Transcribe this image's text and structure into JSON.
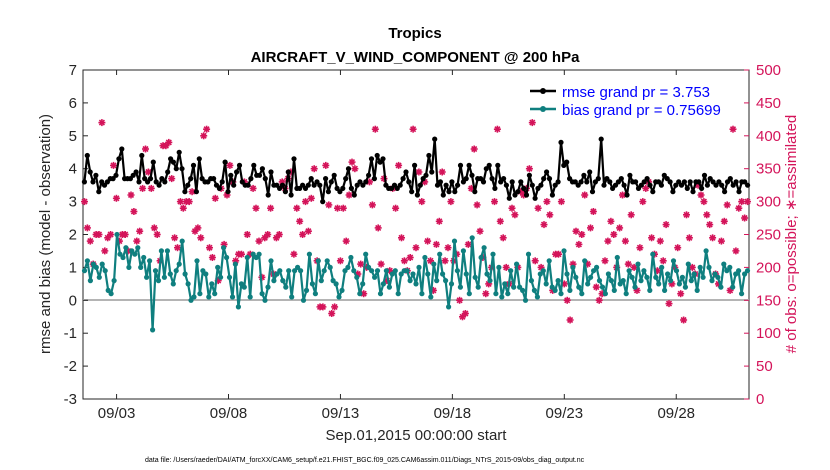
{
  "chart_data": {
    "type": "line",
    "title": "Tropics",
    "subtitle": "AIRCRAFT_V_WIND_COMPONENT @ 200 hPa",
    "xlabel": "Sep.01,2015 00:00:00 start",
    "ylabel_left": "rmse and bias (model - observation)",
    "ylabel_right": "# of obs: o=possible; ∗=assimilated",
    "footnote": "data file: /Users/raeder/DAI/ATM_forcXX/CAM6_setup/f.e21.FHIST_BGC.f09_025.CAM6assim.011/Diags_NTrS_2015-09/obs_diag_output.nc",
    "x_unit": "days since Sep.01,2015 00:00",
    "xlim": [
      0.5,
      30.25
    ],
    "ylim_left": [
      -3,
      7
    ],
    "ylim_right": [
      0,
      500
    ],
    "left_ticks": [
      "-3",
      "-2",
      "-1",
      "0",
      "1",
      "2",
      "3",
      "4",
      "5",
      "6",
      "7"
    ],
    "right_ticks": [
      "0",
      "50",
      "100",
      "150",
      "200",
      "250",
      "300",
      "350",
      "400",
      "450",
      "500"
    ],
    "x_ticks": [
      {
        "x": 2,
        "label": "09/03"
      },
      {
        "x": 7,
        "label": "09/08"
      },
      {
        "x": 12,
        "label": "09/13"
      },
      {
        "x": 17,
        "label": "09/18"
      },
      {
        "x": 22,
        "label": "09/23"
      },
      {
        "x": 27,
        "label": "09/28"
      }
    ],
    "legend": {
      "position": "top-right",
      "entries": [
        {
          "label": "rmse grand pr = 3.753",
          "series": "rmse"
        },
        {
          "label": "bias grand pr = 0.75699",
          "series": "bias"
        }
      ]
    },
    "colors": {
      "rmse": "#000000",
      "bias": "#0f7f7f",
      "obs": "#d4145a",
      "legend_text": "#0000ff",
      "zero_line": "#b4b4b4"
    },
    "series": [
      {
        "name": "rmse",
        "values": [
          3.6,
          4.4,
          3.9,
          3.6,
          3.8,
          3.3,
          3.6,
          3.5,
          3.6,
          3.7,
          3.7,
          3.8,
          4.3,
          4.6,
          3.7,
          3.7,
          3.7,
          3.8,
          3.9,
          3.6,
          4.4,
          3.7,
          3.6,
          3.7,
          4.2,
          3.6,
          3.5,
          3.7,
          3.6,
          3.9,
          4.3,
          4.2,
          4.0,
          4.5,
          4.0,
          3.3,
          3.5,
          3.7,
          4.1,
          3.3,
          4.3,
          3.7,
          3.6,
          3.6,
          3.7,
          3.7,
          3.5,
          3.4,
          3.6,
          4.2,
          3.3,
          3.8,
          3.5,
          3.9,
          4.1,
          3.6,
          3.5,
          3.5,
          3.7,
          4.1,
          3.8,
          3.8,
          4.0,
          3.7,
          3.2,
          3.9,
          3.5,
          3.5,
          3.4,
          3.5,
          3.3,
          3.9,
          3.2,
          4.3,
          3.4,
          3.4,
          3.5,
          3.4,
          3.5,
          3.7,
          3.5,
          3.6,
          3.5,
          3.0,
          3.7,
          3.3,
          3.6,
          3.8,
          3.4,
          3.3,
          3.4,
          3.7,
          4.0,
          3.4,
          3.2,
          3.5,
          3.6,
          3.5,
          3.6,
          3.8,
          4.3,
          3.7,
          4.4,
          4.2,
          4.3,
          3.5,
          3.4,
          3.4,
          3.5,
          3.4,
          3.5,
          3.7,
          3.9,
          3.6,
          3.3,
          4.1,
          3.2,
          3.5,
          3.7,
          3.8,
          4.4,
          3.9,
          4.9,
          3.5,
          3.6,
          3.2,
          3.5,
          3.3,
          3.6,
          3.3,
          3.5,
          4.1,
          3.6,
          3.7,
          4.1,
          3.8,
          3.3,
          3.7,
          3.7,
          3.6,
          4.0,
          4.1,
          3.7,
          3.4,
          4.1,
          3.6,
          3.7,
          3.5,
          3.1,
          3.6,
          3.2,
          3.3,
          3.6,
          3.4,
          3.2,
          3.8,
          3.5,
          3.1,
          3.4,
          3.5,
          3.7,
          3.9,
          3.7,
          3.2,
          3.5,
          3.6,
          4.8,
          4.1,
          4.2,
          3.7,
          3.6,
          3.6,
          3.5,
          3.6,
          3.8,
          3.6,
          3.9,
          3.3,
          3.6,
          3.7,
          4.9,
          3.5,
          3.7,
          3.6,
          3.4,
          3.5,
          3.6,
          3.7,
          3.5,
          3.2,
          3.8,
          3.6,
          3.6,
          3.4,
          3.5,
          3.6,
          3.7,
          3.5,
          3.3,
          3.6,
          3.6,
          3.5,
          3.8,
          3.7,
          3.6,
          3.3,
          3.5,
          3.6,
          3.5,
          3.6,
          3.4,
          3.6,
          3.3,
          3.6,
          3.6,
          3.4,
          3.8,
          3.5,
          3.7,
          3.6,
          3.5,
          3.6,
          3.5,
          3.3,
          3.6,
          3.7,
          3.5,
          3.6,
          3.3,
          3.6,
          3.6,
          3.5
        ]
      },
      {
        "name": "bias",
        "values": [
          0.9,
          1.2,
          0.6,
          1.1,
          1.0,
          0.7,
          1.1,
          0.9,
          0.3,
          0.2,
          0.6,
          2.0,
          1.4,
          1.3,
          1.6,
          1.0,
          1.5,
          1.4,
          1.6,
          1.0,
          1.3,
          0.7,
          1.2,
          -0.9,
          0.9,
          0.6,
          1.5,
          0.7,
          1.5,
          0.8,
          0.5,
          0.9,
          1.1,
          1.8,
          0.8,
          0.5,
          0.0,
          0.1,
          1.2,
          0.2,
          0.9,
          0.8,
          0.1,
          0.5,
          0.2,
          1.0,
          0.7,
          1.6,
          1.3,
          0.7,
          0.1,
          1.1,
          -0.2,
          0.5,
          0.4,
          1.3,
          0.1,
          1.4,
          1.3,
          1.4,
          0.2,
          0.0,
          0.4,
          1.2,
          0.6,
          0.8,
          0.9,
          0.6,
          0.4,
          0.9,
          0.1,
          0.9,
          1.0,
          0.9,
          0.0,
          0.3,
          1.4,
          0.5,
          0.2,
          1.2,
          0.6,
          0.9,
          1.2,
          1.0,
          0.6,
          0.5,
          0.1,
          0.3,
          0.9,
          1.0,
          1.3,
          0.9,
          0.7,
          0.2,
          0.5,
          1.4,
          1.0,
          0.9,
          0.7,
          0.9,
          0.2,
          0.5,
          0.9,
          0.4,
          0.8,
          0.9,
          0.2,
          0.8,
          0.9,
          0.9,
          0.6,
          0.8,
          0.5,
          1.0,
          0.2,
          1.3,
          0.8,
          0.1,
          1.1,
          0.6,
          1.4,
          0.8,
          0.6,
          -0.2,
          0.5,
          1.8,
          0.9,
          0.4,
          1.5,
          0.8,
          0.2,
          1.9,
          0.7,
          0.4,
          1.3,
          1.6,
          0.8,
          0.6,
          1.4,
          0.2,
          1.0,
          0.1,
          0.5,
          0.2,
          0.9,
          0.4,
          1.1,
          0.4,
          0.3,
          0.0,
          1.4,
          0.6,
          0.3,
          0.1,
          0.8,
          0.9,
          0.5,
          1.2,
          0.4,
          0.3,
          0.6,
          0.2,
          1.5,
          0.8,
          0.3,
          1.0,
          0.7,
          0.4,
          0.2,
          1.2,
          0.5,
          0.7,
          0.9,
          1.0,
          0.6,
          0.4,
          0.2,
          0.8,
          0.6,
          0.3,
          1.3,
          0.5,
          0.6,
          0.2,
          0.9,
          0.7,
          0.4,
          1.1,
          0.6,
          0.9,
          0.7,
          0.3,
          1.4,
          0.7,
          0.5,
          1.0,
          0.3,
          0.8,
          0.6,
          1.2,
          0.9,
          0.5,
          0.7,
          0.4,
          1.1,
          0.6,
          0.8,
          0.3,
          1.0,
          0.7,
          1.5,
          1.0,
          0.6,
          0.8,
          0.7,
          0.4,
          1.1,
          0.9,
          1.0,
          0.4,
          0.8,
          0.9,
          0.2,
          0.8,
          0.9
        ]
      },
      {
        "name": "obs assimilated",
        "values": [
          300,
          260,
          240,
          205,
          250,
          250,
          420,
          225,
          245,
          250,
          355,
          305,
          240,
          250,
          250,
          225,
          310,
          285,
          240,
          255,
          320,
          380,
          345,
          320,
          260,
          250,
          210,
          385,
          385,
          390,
          335,
          245,
          230,
          300,
          290,
          300,
          300,
          315,
          255,
          260,
          245,
          400,
          410,
          230,
          215,
          305,
          180,
          320,
          235,
          310,
          355,
          330,
          210,
          220,
          220,
          330,
          250,
          220,
          320,
          290,
          240,
          185,
          245,
          250,
          290,
          190,
          245,
          250,
          330,
          320,
          335,
          345,
          220,
          290,
          270,
          250,
          300,
          255,
          305,
          350,
          210,
          140,
          140,
          355,
          295,
          130,
          140,
          290,
          210,
          290,
          240,
          310,
          360,
          350,
          190,
          205,
          160,
          200,
          330,
          295,
          410,
          260,
          205,
          335,
          180,
          195,
          320,
          290,
          355,
          245,
          210,
          195,
          215,
          410,
          230,
          345,
          300,
          330,
          240,
          210,
          165,
          235,
          270,
          345,
          210,
          230,
          300,
          210,
          220,
          150,
          125,
          130,
          235,
          320,
          380,
          295,
          255,
          215,
          160,
          175,
          200,
          300,
          410,
          270,
          245,
          200,
          175,
          290,
          280,
          200,
          315,
          310,
          320,
          350,
          420,
          210,
          290,
          200,
          265,
          300,
          280,
          165,
          220,
          220,
          300,
          175,
          150,
          120,
          205,
          255,
          235,
          250,
          310,
          205,
          260,
          285,
          170,
          150,
          160,
          210,
          240,
          270,
          250,
          200,
          260,
          310,
          240,
          205,
          280,
          200,
          165,
          230,
          300,
          320,
          330,
          245,
          220,
          195,
          240,
          210,
          265,
          145,
          175,
          200,
          230,
          160,
          120,
          280,
          245,
          200,
          190,
          325,
          310,
          300,
          280,
          265,
          245,
          190,
          175,
          240,
          270,
          295,
          165,
          410,
          225,
          290,
          300,
          275,
          300
        ]
      }
    ]
  }
}
